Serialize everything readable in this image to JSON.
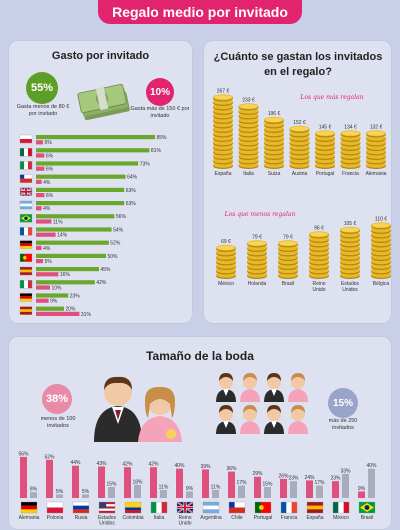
{
  "header": {
    "title": "Regalo medio por invitado"
  },
  "left_panel": {
    "title": "Gasto por invitado",
    "badge_low": {
      "value": "55%",
      "caption": "Gasta menos de 80 € por invitado",
      "color": "#5c9e26"
    },
    "badge_high": {
      "value": "10%",
      "caption": "Gasta más de 150 € por invitado",
      "color": "#e2246e"
    }
  },
  "right_panel": {
    "title": "¿Cuánto se gastan los invitados en el regalo?",
    "top_caption": "Los que más regalan",
    "bottom_caption": "Los que menos regalan"
  },
  "bottom_panel": {
    "title": "Tamaño de la boda",
    "badge_small": {
      "value": "38%",
      "caption": "menos de 100 invitados",
      "color": "#e88aa8"
    },
    "badge_large": {
      "value": "15%",
      "caption": "más de 250 invitados",
      "color": "#9aa3c9"
    }
  },
  "colors": {
    "green": "#6aa82d",
    "pink": "#e0507e",
    "grey": "#a8acbf",
    "gold": "#c99b1b"
  },
  "chart_data": [
    {
      "type": "bar",
      "title": "Gasto por invitado",
      "orientation": "horizontal",
      "series": [
        {
          "name": "green",
          "values": [
            85,
            81,
            73,
            64,
            63,
            63,
            56,
            54,
            52,
            50,
            45,
            42,
            23,
            20
          ]
        },
        {
          "name": "red",
          "values": [
            5,
            6,
            6,
            4,
            6,
            4,
            11,
            14,
            4,
            5,
            16,
            10,
            9,
            31
          ]
        }
      ],
      "flags": [
        "poland",
        "mexico",
        "italy",
        "chile",
        "uk",
        "argentina",
        "brazil",
        "france",
        "germany",
        "portugal",
        "spain",
        "italy",
        "germany",
        "spain"
      ]
    },
    {
      "type": "bar",
      "title": "Los que más regalan",
      "categories": [
        "España",
        "Italia",
        "Suiza",
        "Austria",
        "Portugal",
        "Francia",
        "Alemania"
      ],
      "values": [
        267,
        233,
        196,
        152,
        145,
        134,
        132
      ],
      "value_labels": [
        "267 €",
        "233 €",
        "196 €",
        "152 €",
        "145 €",
        "134 €",
        "132 €"
      ]
    },
    {
      "type": "bar",
      "title": "Los que menos regalan",
      "categories": [
        "México",
        "Holanda",
        "Brasil",
        "Reino Unido",
        "Estados Unidos",
        "Bélgica"
      ],
      "values": [
        69,
        79,
        79,
        96,
        105,
        110
      ],
      "value_labels": [
        "69 €",
        "79 €",
        "79 €",
        "96 €",
        "105 €",
        "110 €"
      ]
    },
    {
      "type": "bar",
      "title": "Tamaño de la boda",
      "categories": [
        "Alemania",
        "Polonia",
        "Rusia",
        "Estados Unidos",
        "Colombia",
        "Italia",
        "Reino Unido",
        "Argentina",
        "Chile",
        "Portugal",
        "Francia",
        "España",
        "México",
        "Brasil"
      ],
      "series": [
        {
          "name": "pink",
          "values": [
            56,
            52,
            44,
            43,
            42,
            42,
            40,
            39,
            36,
            29,
            26,
            24,
            23,
            9
          ]
        },
        {
          "name": "grey",
          "values": [
            8,
            5,
            5,
            15,
            18,
            11,
            9,
            11,
            17,
            15,
            23,
            17,
            33,
            40
          ]
        }
      ],
      "flags": [
        "germany",
        "poland",
        "russia",
        "usa",
        "colombia",
        "italy",
        "uk",
        "argentina",
        "chile",
        "portugal",
        "france",
        "spain",
        "mexico",
        "brazil"
      ]
    }
  ]
}
